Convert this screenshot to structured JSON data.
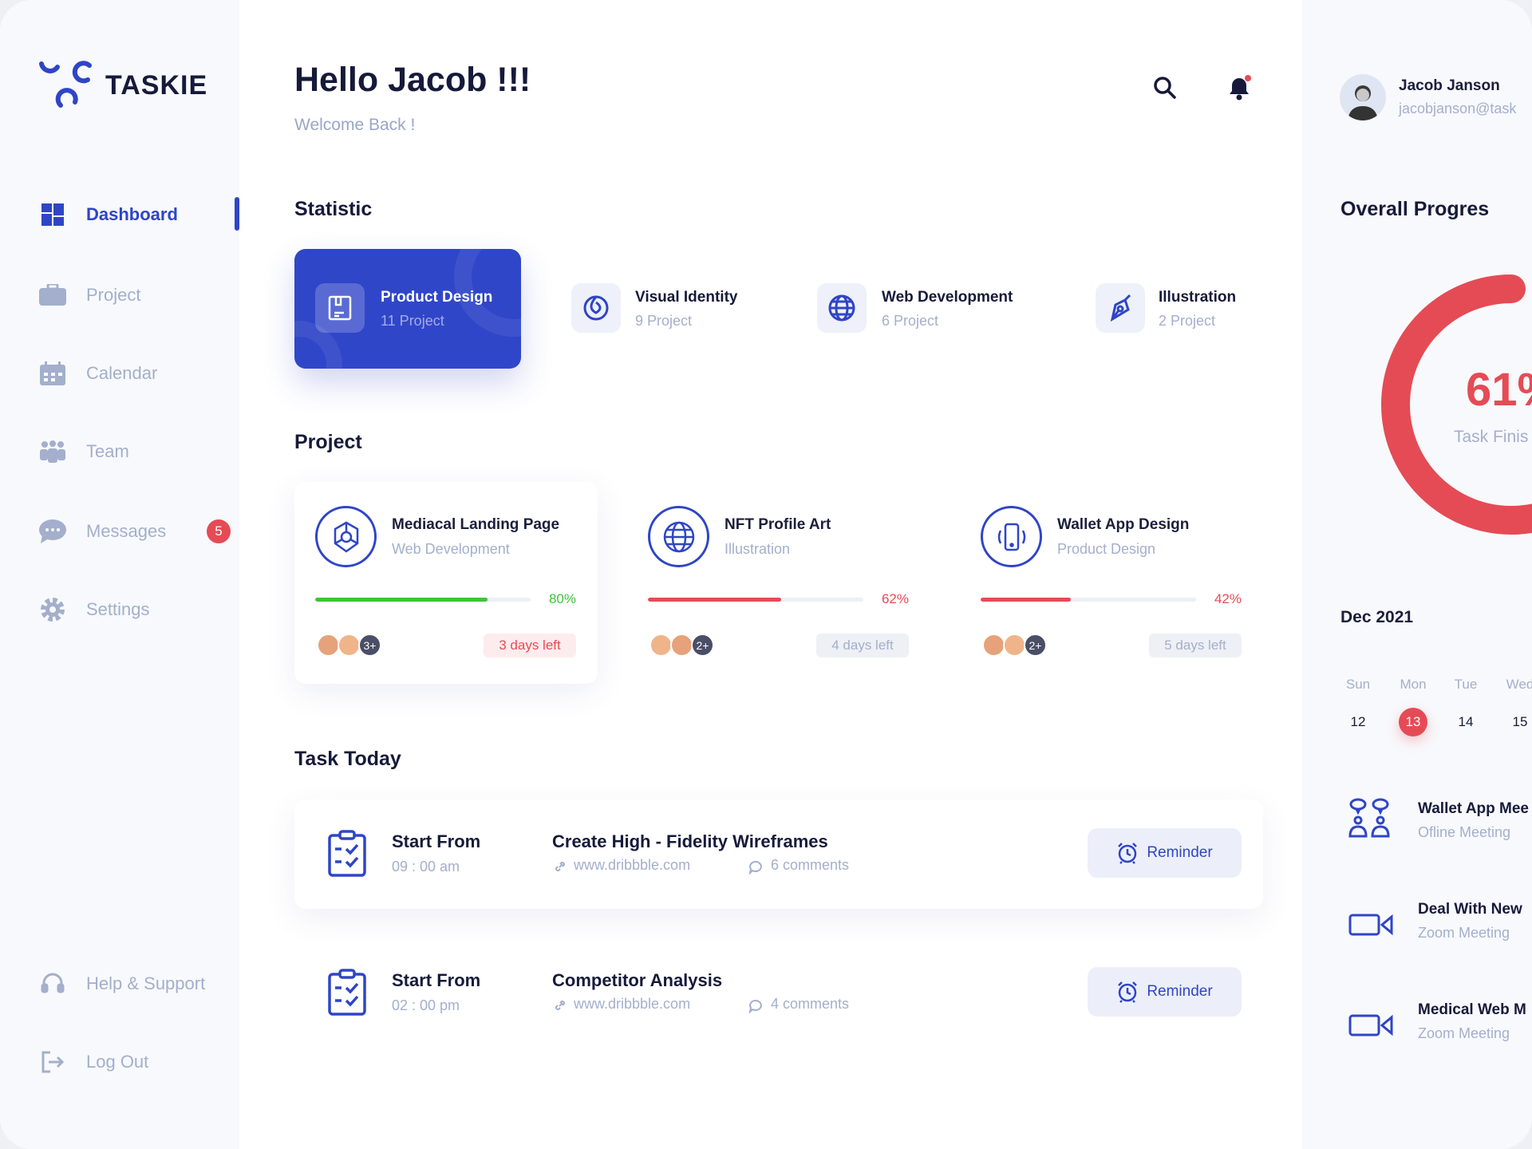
{
  "app": {
    "name": "TASKIE"
  },
  "sidebar": {
    "items": [
      {
        "label": "Dashboard",
        "icon": "grid-icon",
        "active": true
      },
      {
        "label": "Project",
        "icon": "briefcase-icon"
      },
      {
        "label": "Calendar",
        "icon": "calendar-icon"
      },
      {
        "label": "Team",
        "icon": "team-icon"
      },
      {
        "label": "Messages",
        "icon": "chat-icon",
        "badge": "5"
      },
      {
        "label": "Settings",
        "icon": "gear-icon"
      }
    ],
    "bottom": [
      {
        "label": "Help & Support",
        "icon": "headset-icon"
      },
      {
        "label": "Log Out",
        "icon": "logout-icon"
      }
    ]
  },
  "header": {
    "title": "Hello Jacob !!!",
    "subtitle": "Welcome Back !"
  },
  "user": {
    "name": "Jacob Janson",
    "email": "jacobjanson@task"
  },
  "statistic": {
    "title": "Statistic",
    "items": [
      {
        "title": "Product Design",
        "sub": "11 Project"
      },
      {
        "title": "Visual Identity",
        "sub": "9 Project"
      },
      {
        "title": "Web Development",
        "sub": "6 Project"
      },
      {
        "title": "Illustration",
        "sub": "2 Project"
      }
    ]
  },
  "projects": {
    "title": "Project",
    "items": [
      {
        "title": "Mediacal Landing Page",
        "category": "Web Development",
        "progress": 80,
        "progress_label": "80%",
        "color": "#3ec43a",
        "extra": "3+",
        "due": "3 days left"
      },
      {
        "title": "NFT Profile Art",
        "category": "Illustration",
        "progress": 62,
        "progress_label": "62%",
        "color": "#e54b55",
        "extra": "2+",
        "due": "4 days left"
      },
      {
        "title": "Wallet App Design",
        "category": "Product Design",
        "progress": 42,
        "progress_label": "42%",
        "color": "#e54b55",
        "extra": "2+",
        "due": "5 days left"
      }
    ]
  },
  "tasks": {
    "title": "Task Today",
    "items": [
      {
        "label": "Start From",
        "time": "09 : 00 am",
        "title": "Create High - Fidelity Wireframes",
        "link": "www.dribbble.com",
        "comments": "6 comments",
        "button": "Reminder"
      },
      {
        "label": "Start From",
        "time": "02 : 00 pm",
        "title": "Competitor Analysis",
        "link": "www.dribbble.com",
        "comments": "4 comments",
        "button": "Reminder"
      }
    ]
  },
  "overall": {
    "title": "Overall Progres",
    "value": 61,
    "value_label": "61%",
    "caption": "Task Finis",
    "color": "#e54b55"
  },
  "calendar": {
    "month": "Dec 2021",
    "days": [
      {
        "d": "Sun",
        "n": "12"
      },
      {
        "d": "Mon",
        "n": "13",
        "selected": true
      },
      {
        "d": "Tue",
        "n": "14"
      },
      {
        "d": "Wed",
        "n": "15"
      }
    ]
  },
  "meetings": [
    {
      "title": "Wallet App Mee",
      "type": "Ofline Meeting",
      "icon": "people-talk-icon"
    },
    {
      "title": "Deal With New",
      "type": "Zoom Meeting",
      "icon": "video-camera-icon"
    },
    {
      "title": "Medical Web M",
      "type": "Zoom Meeting",
      "icon": "video-camera-icon"
    }
  ]
}
